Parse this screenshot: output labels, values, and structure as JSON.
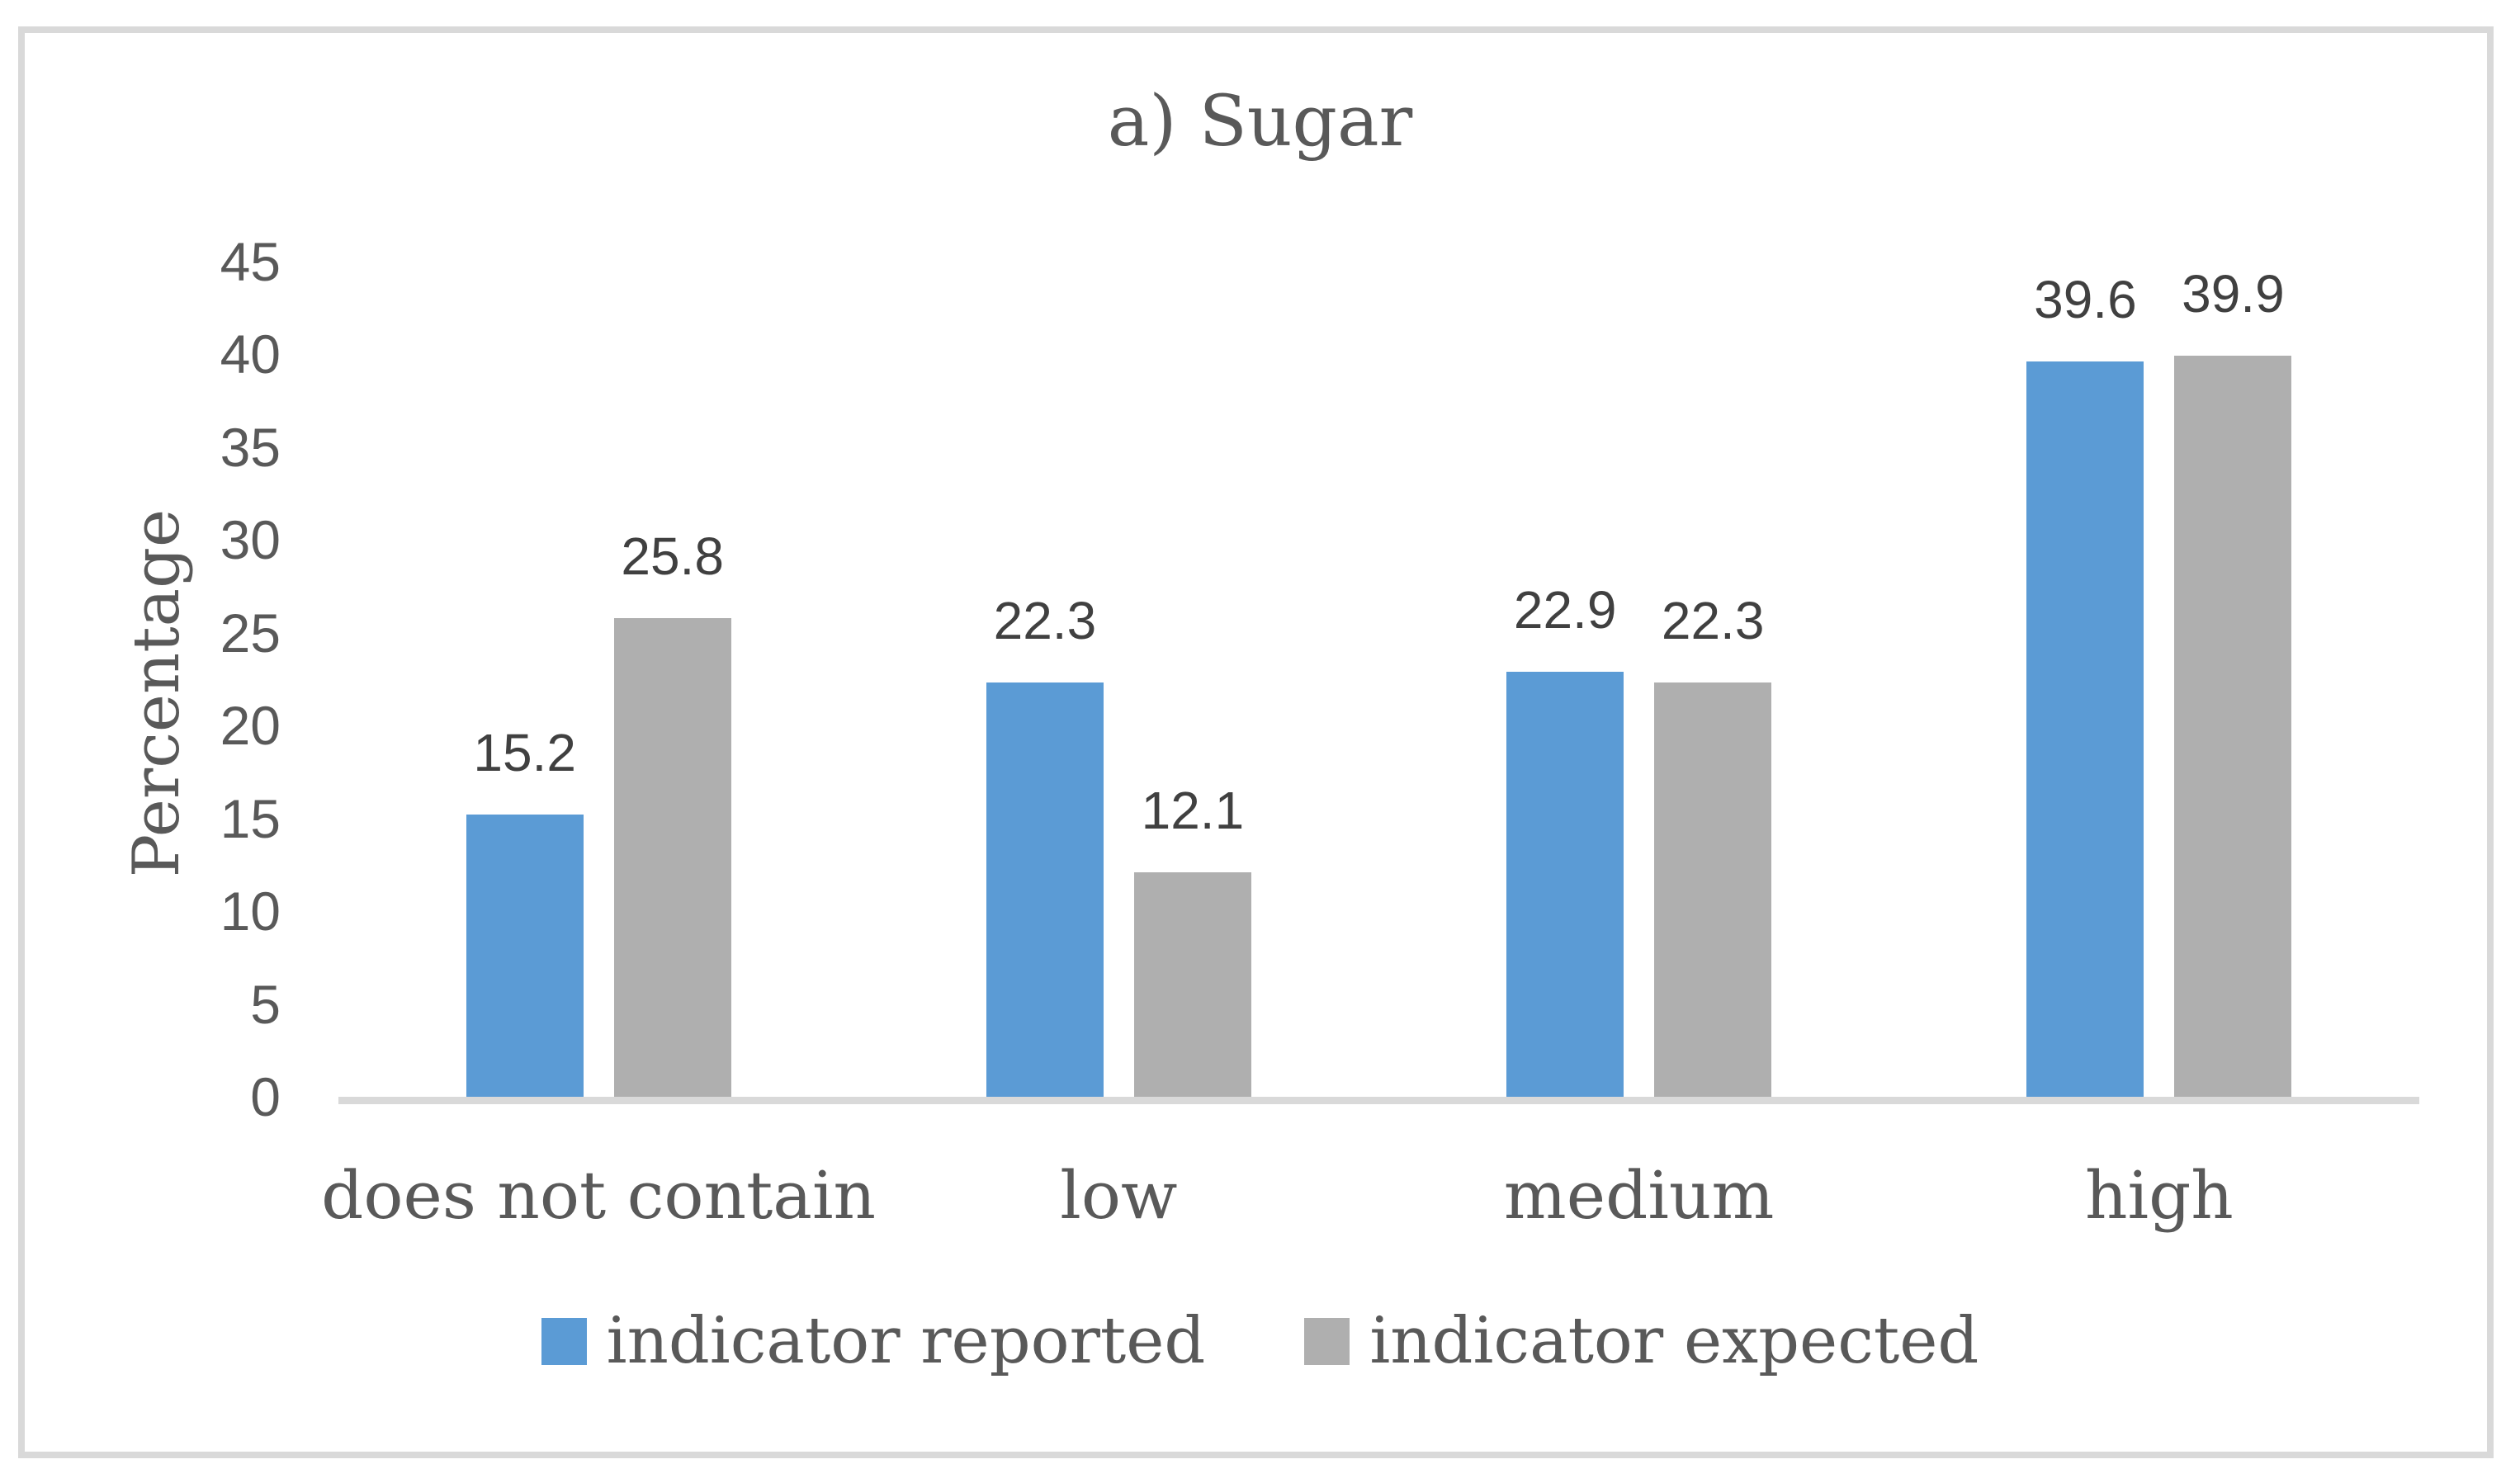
{
  "chart_data": {
    "type": "bar",
    "title": "a) Sugar",
    "xlabel": "",
    "ylabel": "Percentage",
    "categories": [
      "does not contain",
      "low",
      "medium",
      "high"
    ],
    "series": [
      {
        "name": "indicator reported",
        "color": "#5B9BD5",
        "values": [
          15.2,
          22.3,
          22.9,
          39.6
        ]
      },
      {
        "name": "indicator expected",
        "color": "#AFAFAF",
        "values": [
          25.8,
          12.1,
          22.3,
          39.9
        ]
      }
    ],
    "ylim": [
      0,
      45
    ],
    "yticks": [
      0,
      5,
      10,
      15,
      20,
      25,
      30,
      35,
      40,
      45
    ],
    "grid": false,
    "data_labels": true,
    "legend_position": "bottom"
  },
  "colors": {
    "series_reported": "#5B9BD5",
    "series_expected": "#AFAFAF",
    "axis_line": "#D9D9D9",
    "frame_border": "#D9D9D9",
    "serif_text": "#595959",
    "number_text": "#404040"
  }
}
